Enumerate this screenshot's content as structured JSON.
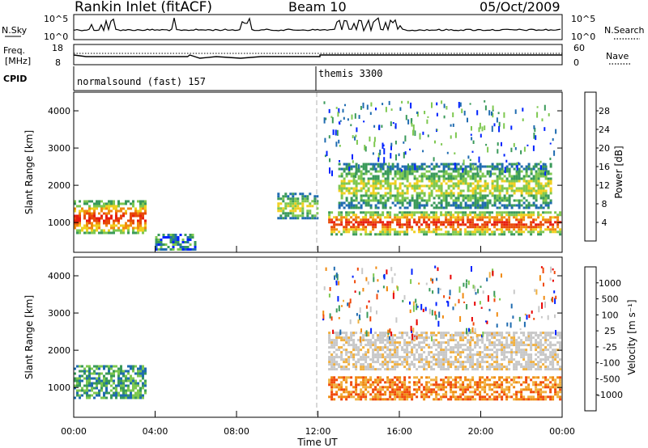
{
  "header": {
    "site": "Rankin Inlet (fitACF)",
    "beam": "Beam 10",
    "date": "05/Oct/2009"
  },
  "panels": {
    "nsky": {
      "left_label": "N.Sky",
      "right_label": "N.Search",
      "ticks_left": [
        "10^5",
        "10^0"
      ],
      "ticks_right": [
        "10^5",
        "10^0"
      ]
    },
    "freq": {
      "left_label_1": "Freq.",
      "left_label_2": "[MHz]",
      "right_label": "Nave",
      "ticks_left": [
        "18",
        "8"
      ],
      "ticks_right": [
        "60",
        "0"
      ]
    },
    "cpid": {
      "label": "CPID",
      "modes": [
        "normalsound (fast) 157",
        "themis 3300"
      ]
    }
  },
  "colors": {
    "power": [
      "#0022ff",
      "#1f6bb0",
      "#3a9a5a",
      "#7ec850",
      "#f0d020",
      "#f08a10",
      "#e84a0a",
      "#e81e10"
    ],
    "velocity": [
      "#e80000",
      "#f04a0a",
      "#f08a10",
      "#f0b040",
      "#c8c8c8",
      "#3a9a5a",
      "#7ec850",
      "#1f6bb0",
      "#0022ff"
    ]
  },
  "chart_data": [
    {
      "type": "heatmap",
      "title": "Power",
      "ylabel": "Slant Range [km]",
      "xlabel": "",
      "x_ticks": [
        "00:00",
        "04:00",
        "08:00",
        "12:00",
        "16:00",
        "20:00",
        "00:00"
      ],
      "y_ticks": [
        "1000",
        "2000",
        "3000",
        "4000"
      ],
      "ylim": [
        200,
        4500
      ],
      "colorbar_label": "Power [dB]",
      "colorbar_ticks": [
        "4",
        "8",
        "12",
        "16",
        "20",
        "24",
        "28"
      ],
      "features": [
        {
          "t": [
            0.0,
            3.5
          ],
          "range": [
            700,
            1600
          ],
          "level": "high"
        },
        {
          "t": [
            4.0,
            6.0
          ],
          "range": [
            300,
            700
          ],
          "level": "low"
        },
        {
          "t": [
            10.0,
            12.0
          ],
          "range": [
            1100,
            1800
          ],
          "level": "mid"
        },
        {
          "t": [
            12.5,
            23.9
          ],
          "range": [
            700,
            1300
          ],
          "level": "high"
        },
        {
          "t": [
            13.0,
            23.5
          ],
          "range": [
            1400,
            2600
          ],
          "level": "mid"
        }
      ]
    },
    {
      "type": "heatmap",
      "title": "Velocity",
      "ylabel": "Slant Range [km]",
      "xlabel": "Time UT",
      "x_ticks": [
        "00:00",
        "04:00",
        "08:00",
        "12:00",
        "16:00",
        "20:00",
        "00:00"
      ],
      "y_ticks": [
        "1000",
        "2000",
        "3000",
        "4000"
      ],
      "ylim": [
        200,
        4500
      ],
      "colorbar_label": "Velocity [m s⁻¹]",
      "colorbar_ticks": [
        "1000",
        "500",
        "100",
        "25",
        "-25",
        "-100",
        "-500",
        "-1000"
      ],
      "features": [
        {
          "t": [
            0.0,
            3.5
          ],
          "range": [
            700,
            1600
          ],
          "level": "pos"
        },
        {
          "t": [
            12.5,
            23.9
          ],
          "range": [
            1500,
            2500
          ],
          "level": "zero"
        },
        {
          "t": [
            12.5,
            23.9
          ],
          "range": [
            700,
            1300
          ],
          "level": "neg"
        }
      ]
    }
  ]
}
